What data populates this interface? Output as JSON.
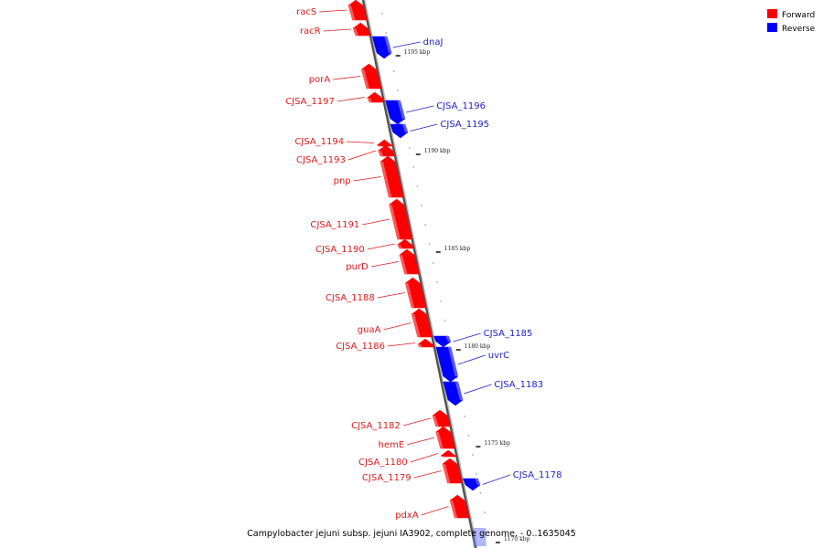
{
  "caption": "Campylobacter jejuni subsp. jejuni IA3902, complete genome. - 0..1635045",
  "colors": {
    "forward": "#ff0000",
    "forward_label": "#dd1a1a",
    "reverse": "#0000ff",
    "reverse_label": "#2020cc",
    "axis": "#888888"
  },
  "legend": [
    {
      "name": "Forward",
      "color": "#ff0000"
    },
    {
      "name": "Reverse",
      "color": "#0000ff"
    }
  ],
  "ticks": [
    {
      "label": "1195 kbp",
      "kbp": 1195
    },
    {
      "label": "1190 kbp",
      "kbp": 1190
    },
    {
      "label": "1185 kbp",
      "kbp": 1185
    },
    {
      "label": "1180 kbp",
      "kbp": 1180
    },
    {
      "label": "1175 kbp",
      "kbp": 1175
    },
    {
      "label": "1170 kbp",
      "kbp": 1170
    }
  ],
  "genes": [
    {
      "name": "racS",
      "strand": "forward"
    },
    {
      "name": "racR",
      "strand": "forward"
    },
    {
      "name": "dnaJ",
      "strand": "reverse"
    },
    {
      "name": "porA",
      "strand": "forward"
    },
    {
      "name": "CJSA_1197",
      "strand": "forward"
    },
    {
      "name": "CJSA_1196",
      "strand": "reverse"
    },
    {
      "name": "CJSA_1195",
      "strand": "reverse"
    },
    {
      "name": "CJSA_1194",
      "strand": "forward"
    },
    {
      "name": "CJSA_1193",
      "strand": "forward"
    },
    {
      "name": "pnp",
      "strand": "forward"
    },
    {
      "name": "CJSA_1191",
      "strand": "forward"
    },
    {
      "name": "CJSA_1190",
      "strand": "forward"
    },
    {
      "name": "purD",
      "strand": "forward"
    },
    {
      "name": "CJSA_1188",
      "strand": "forward"
    },
    {
      "name": "guaA",
      "strand": "forward"
    },
    {
      "name": "CJSA_1186",
      "strand": "forward"
    },
    {
      "name": "CJSA_1185",
      "strand": "reverse"
    },
    {
      "name": "uvrC",
      "strand": "reverse"
    },
    {
      "name": "CJSA_1183",
      "strand": "reverse"
    },
    {
      "name": "CJSA_1182",
      "strand": "forward"
    },
    {
      "name": "hemE",
      "strand": "forward"
    },
    {
      "name": "CJSA_1180",
      "strand": "forward"
    },
    {
      "name": "CJSA_1179",
      "strand": "forward"
    },
    {
      "name": "CJSA_1178",
      "strand": "reverse"
    },
    {
      "name": "pdxA",
      "strand": "forward"
    }
  ]
}
